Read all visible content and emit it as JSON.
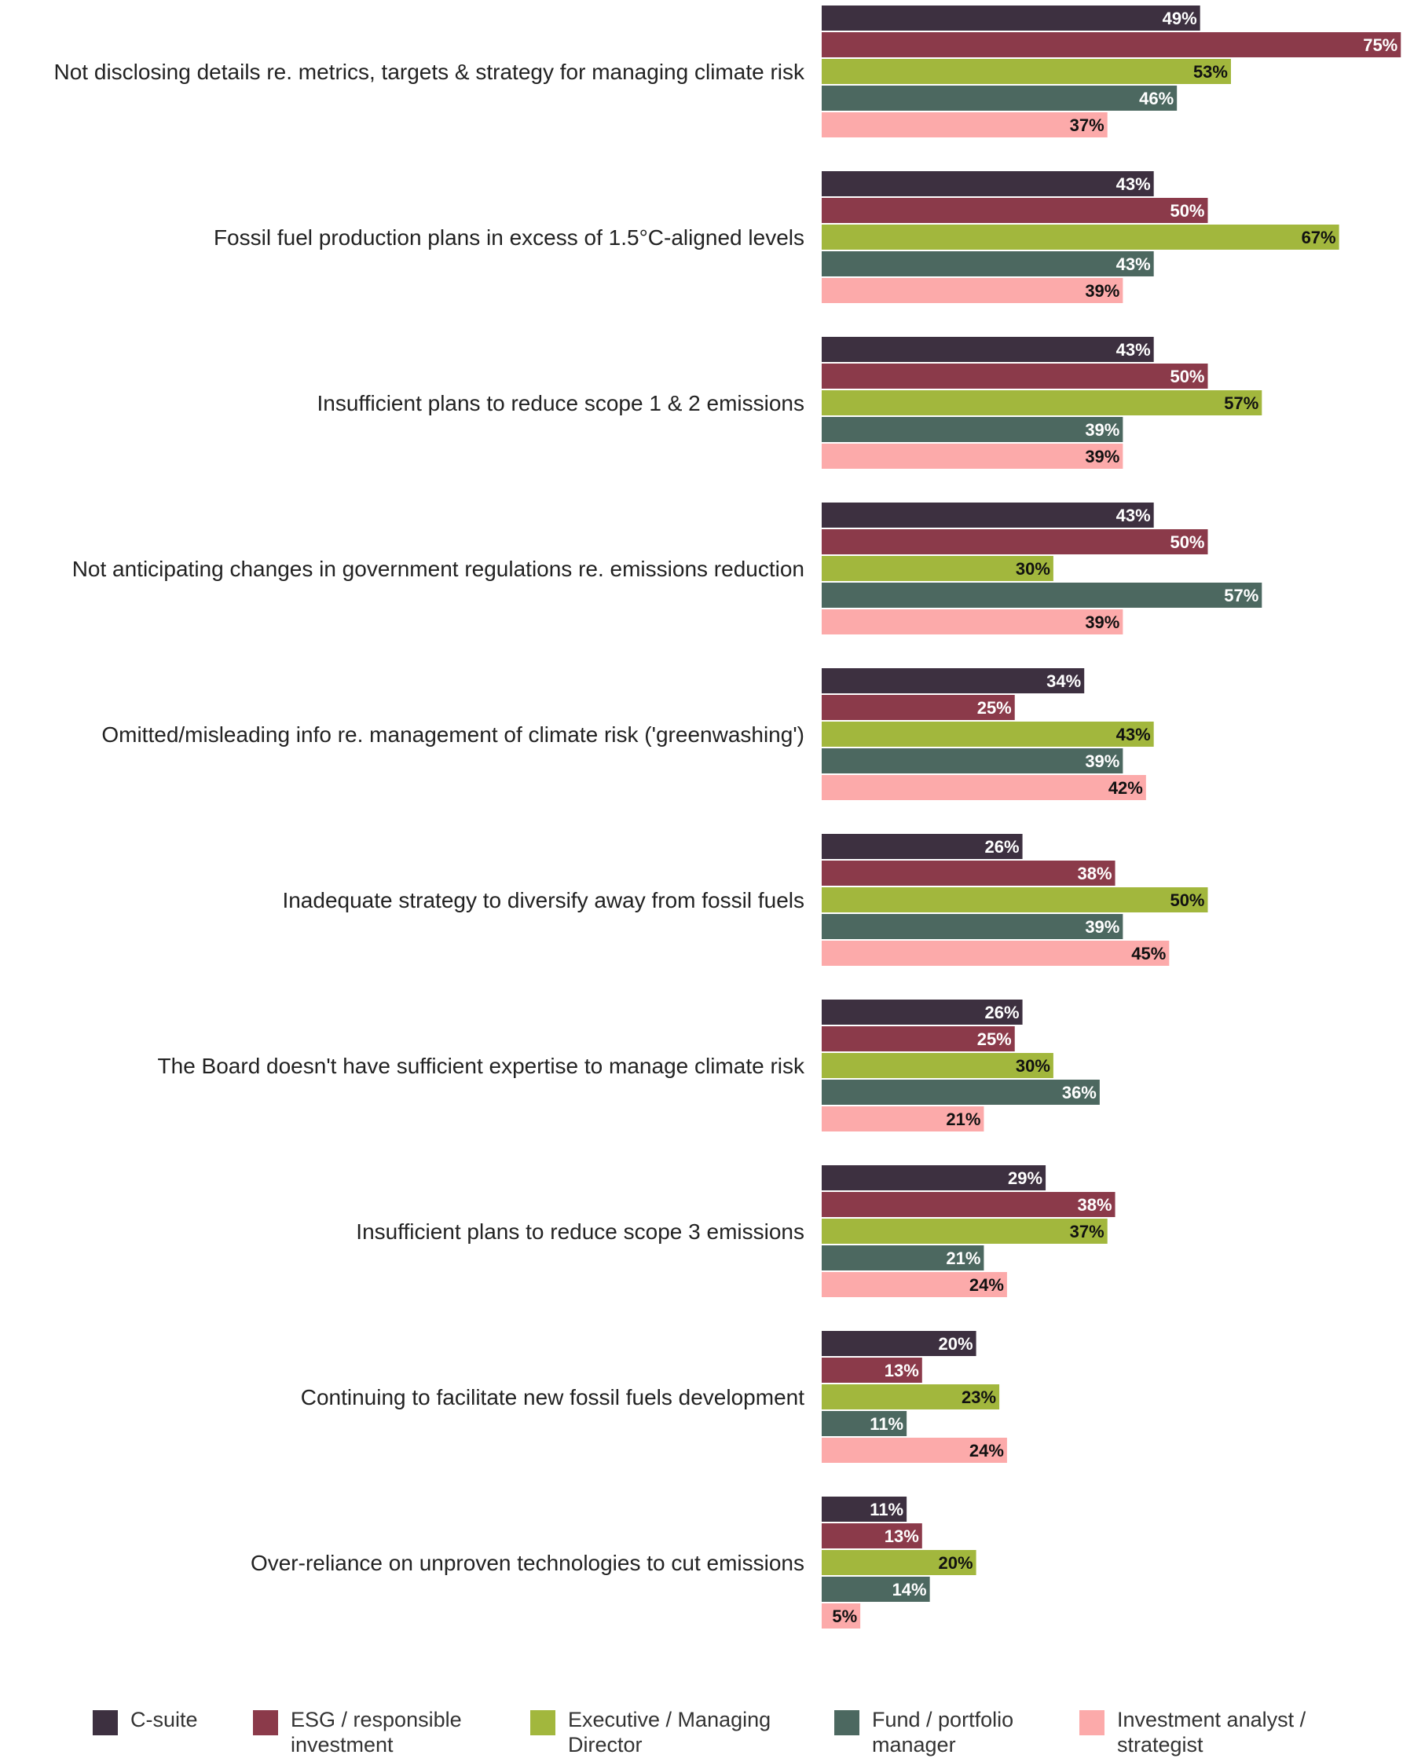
{
  "chart_data": {
    "type": "bar",
    "orientation": "horizontal",
    "categories": [
      "Not disclosing details re. metrics, targets & strategy for managing climate risk",
      "Fossil fuel production plans in excess of 1.5°C-aligned levels",
      "Insufficient plans to reduce scope 1 & 2 emissions",
      "Not anticipating changes in government regulations re. emissions reduction",
      "Omitted/misleading info re. management of climate risk ('greenwashing')",
      "Inadequate strategy to diversify away from fossil fuels",
      "The Board doesn't have sufficient expertise to manage climate risk",
      "Insufficient plans to reduce scope 3 emissions",
      "Continuing to facilitate new fossil fuels development",
      "Over-reliance on unproven technologies to cut emissions"
    ],
    "series": [
      {
        "name": "C-suite",
        "color": "#3d3040",
        "label_color": "#ffffff",
        "values": [
          49,
          43,
          43,
          43,
          34,
          26,
          26,
          29,
          20,
          11
        ]
      },
      {
        "name": "ESG / responsible investment",
        "color": "#8b3a4a",
        "label_color": "#ffffff",
        "values": [
          75,
          50,
          50,
          50,
          25,
          38,
          25,
          38,
          13,
          13
        ]
      },
      {
        "name": "Executive / Managing Director",
        "color": "#a2b73d",
        "label_color": "#111111",
        "values": [
          53,
          67,
          57,
          30,
          43,
          50,
          30,
          37,
          23,
          20
        ]
      },
      {
        "name": "Fund / portfolio manager",
        "color": "#4c6860",
        "label_color": "#ffffff",
        "values": [
          46,
          43,
          39,
          57,
          39,
          39,
          36,
          21,
          11,
          14
        ]
      },
      {
        "name": "Investment analyst / strategist",
        "color": "#fcaaaa",
        "label_color": "#111111",
        "values": [
          37,
          39,
          39,
          39,
          42,
          45,
          21,
          24,
          24,
          5
        ]
      }
    ],
    "value_suffix": "%",
    "xlim": [
      0,
      75
    ],
    "grid": false,
    "legend_position": "bottom"
  },
  "legend": {
    "items": [
      {
        "label_line1": "C-suite",
        "label_line2": "",
        "color": "#3d3040"
      },
      {
        "label_line1": "ESG / responsible",
        "label_line2": "investment",
        "color": "#8b3a4a"
      },
      {
        "label_line1": "Executive / Managing",
        "label_line2": "Director",
        "color": "#a2b73d"
      },
      {
        "label_line1": "Fund / portfolio",
        "label_line2": "manager",
        "color": "#4c6860"
      },
      {
        "label_line1": "Investment analyst /",
        "label_line2": "strategist",
        "color": "#fcaaaa"
      }
    ]
  }
}
